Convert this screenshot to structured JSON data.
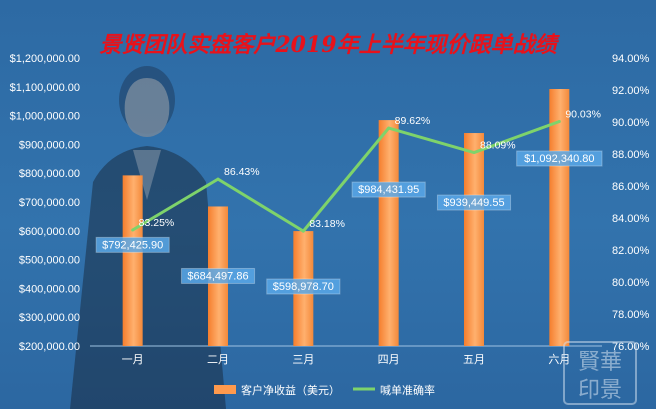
{
  "chart_data": {
    "type": "bar",
    "title": "景贤团队实盘客户2019年上半年现价跟单战绩",
    "categories": [
      "一月",
      "二月",
      "三月",
      "四月",
      "五月",
      "六月"
    ],
    "series": [
      {
        "name": "客户净收益（美元）",
        "axis": "left",
        "kind": "bar",
        "values": [
          792425.9,
          684497.86,
          598978.7,
          984431.95,
          939449.55,
          1092340.8
        ],
        "labels": [
          "$792,425.90",
          "$684,497.86",
          "$598,978.70",
          "$984,431.95",
          "$939,449.55",
          "$1,092,340.80"
        ]
      },
      {
        "name": "喊单准确率",
        "axis": "right",
        "kind": "line",
        "values": [
          83.25,
          86.43,
          83.18,
          89.62,
          88.09,
          90.03
        ],
        "labels": [
          "83.25%",
          "86.43%",
          "83.18%",
          "89.62%",
          "88.09%",
          "90.03%"
        ]
      }
    ],
    "y_left": {
      "lim": [
        200000,
        1200000
      ],
      "ticks": [
        200000,
        300000,
        400000,
        500000,
        600000,
        700000,
        800000,
        900000,
        1000000,
        1100000,
        1200000
      ],
      "tick_labels": [
        "$200,000.00",
        "$300,000.00",
        "$400,000.00",
        "$500,000.00",
        "$600,000.00",
        "$700,000.00",
        "$800,000.00",
        "$900,000.00",
        "$1,000,000.00",
        "$1,100,000.00",
        "$1,200,000.00"
      ]
    },
    "y_right": {
      "lim": [
        76,
        94
      ],
      "ticks": [
        76,
        78,
        80,
        82,
        84,
        86,
        88,
        90,
        92,
        94
      ],
      "tick_labels": [
        "76.00%",
        "78.00%",
        "80.00%",
        "82.00%",
        "84.00%",
        "86.00%",
        "88.00%",
        "90.00%",
        "92.00%",
        "94.00%"
      ]
    },
    "grid": false,
    "legend_position": "bottom",
    "colors": {
      "bar": "#ff9a4d",
      "line": "#7ed36b",
      "title": "#e8121b",
      "label_box": "#5aa8e8"
    }
  },
  "watermark": {
    "lines": [
      "賢華",
      "印景"
    ]
  }
}
